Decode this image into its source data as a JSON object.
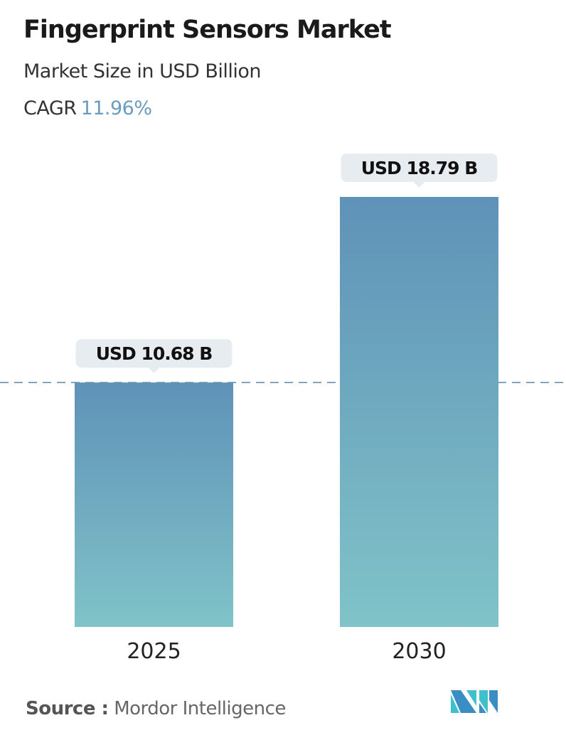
{
  "title": "Fingerprint Sensors Market",
  "subtitle": "Market Size in USD Billion",
  "cagr_label": "CAGR",
  "cagr_value": "11.96%",
  "source_label": "Source :",
  "source_value": "Mordor Intelligence",
  "logo_text": "MI",
  "colors": {
    "bar_top": "#5f92b8",
    "bar_bottom": "#80c3c8",
    "dash": "#5b88a8",
    "label_bg": "#e6ecef",
    "accent": "#6a9cbf"
  },
  "chart_data": {
    "type": "bar",
    "categories": [
      "2025",
      "2030"
    ],
    "values": [
      10.68,
      18.79
    ],
    "data_labels": [
      "USD 10.68 B",
      "USD 18.79 B"
    ],
    "unit": "USD Billion",
    "reference_line": 10.68,
    "grid": false,
    "ylim": [
      0,
      18.79
    ]
  }
}
